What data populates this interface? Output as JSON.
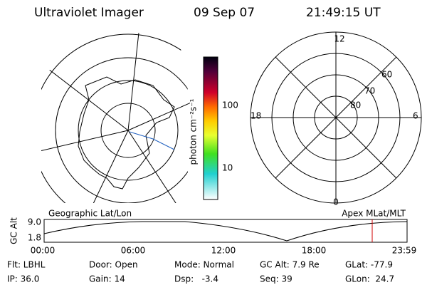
{
  "header": {
    "instrument": "Ultraviolet Imager",
    "date": "09 Sep 07",
    "time": "21:49:15 UT"
  },
  "colorbar": {
    "label": "photon cm⁻²s⁻¹",
    "ticks": [
      "100",
      "10"
    ]
  },
  "magnetic_map": {
    "hour_labels": [
      "12",
      "18",
      "6",
      "0"
    ],
    "lat_labels": [
      "60",
      "70",
      "80"
    ]
  },
  "altitude_panel": {
    "left_label": "Geographic Lat/Lon",
    "right_label": "Apex MLat/MLT",
    "axis_label": "GC Alt",
    "y_labels": [
      "9.0",
      "1.8"
    ],
    "time_labels": [
      "00:00",
      "06:00",
      "12:00",
      "18:00",
      "23:59"
    ]
  },
  "status": [
    [
      "Flt: LBHL",
      "Door: Open",
      "Mode: Normal",
      "GC Alt: 7.9 Re",
      "GLat: -77.9"
    ],
    [
      "IP: 36.0",
      "Gain: 14",
      "Dsp:   -3.4",
      "Seq: 39",
      "GLon:  24.7"
    ]
  ]
}
